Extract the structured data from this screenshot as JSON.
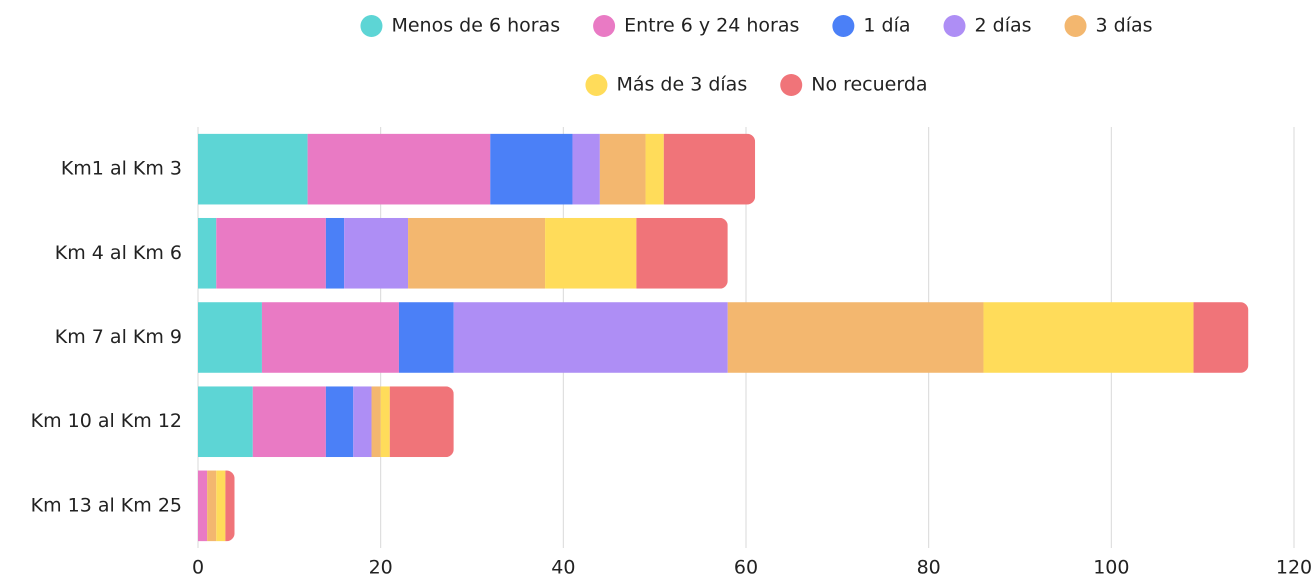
{
  "chart_data": {
    "type": "stacked-bar-horizontal",
    "categories": [
      "Km1 al Km 3",
      "Km 4 al Km 6",
      "Km 7 al Km 9",
      "Km 10 al Km 12",
      "Km 13 al Km 25"
    ],
    "series": [
      {
        "name": "Menos de 6 horas",
        "color": "#5dd5d5",
        "values": [
          12,
          2,
          7,
          6,
          0
        ]
      },
      {
        "name": "Entre 6 y 24 horas",
        "color": "#e97ac4",
        "values": [
          20,
          12,
          15,
          8,
          1
        ]
      },
      {
        "name": "1 día",
        "color": "#4b80f7",
        "values": [
          9,
          2,
          6,
          3,
          0
        ]
      },
      {
        "name": "2 días",
        "color": "#ae8ef5",
        "values": [
          3,
          7,
          30,
          2,
          0
        ]
      },
      {
        "name": "3 días",
        "color": "#f3b76f",
        "values": [
          5,
          15,
          28,
          1,
          1
        ]
      },
      {
        "name": "Más de 3 días",
        "color": "#ffdc5a",
        "values": [
          2,
          10,
          23,
          1,
          1
        ]
      },
      {
        "name": "No recuerda",
        "color": "#f07479",
        "values": [
          10,
          10,
          6,
          7,
          1
        ]
      }
    ],
    "xlim": [
      0,
      120
    ],
    "xticks": [
      0,
      20,
      40,
      60,
      80,
      100,
      120
    ],
    "grid": true,
    "legend": "top"
  }
}
